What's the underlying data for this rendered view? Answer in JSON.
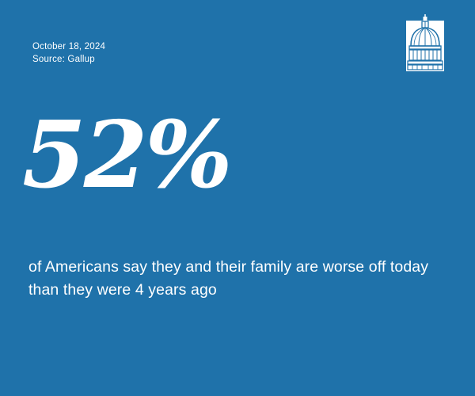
{
  "header": {
    "date": "October 18, 2024",
    "source": "Source: Gallup"
  },
  "logo": {
    "icon": "capitol-dome-icon"
  },
  "stat": {
    "value": "52%",
    "statement": "of Americans say they and their family are worse off today than they were 4 years ago"
  },
  "colors": {
    "background": "#1f72aa",
    "text": "#ffffff"
  }
}
